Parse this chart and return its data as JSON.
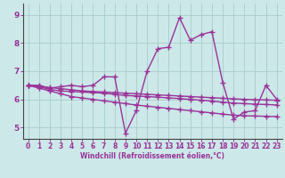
{
  "title": "",
  "xlabel": "Windchill (Refroidissement éolien,°C)",
  "ylabel": "",
  "xlim": [
    -0.5,
    23.5
  ],
  "ylim": [
    4.6,
    9.4
  ],
  "yticks": [
    5,
    6,
    7,
    8,
    9
  ],
  "xticks": [
    0,
    1,
    2,
    3,
    4,
    5,
    6,
    7,
    8,
    9,
    10,
    11,
    12,
    13,
    14,
    15,
    16,
    17,
    18,
    19,
    20,
    21,
    22,
    23
  ],
  "bg_color": "#cce8e8",
  "grid_color": "#aacccc",
  "line_color": "#993399",
  "axis_color": "#555555",
  "marker": "+",
  "markersize": 4,
  "linewidth": 1.0,
  "lines": [
    [
      6.5,
      6.5,
      6.4,
      6.45,
      6.5,
      6.45,
      6.5,
      6.8,
      6.8,
      4.8,
      5.6,
      7.0,
      7.8,
      7.85,
      8.9,
      8.1,
      8.3,
      8.4,
      6.6,
      5.3,
      5.55,
      5.6,
      6.5,
      6.0
    ],
    [
      6.5,
      6.45,
      6.35,
      6.3,
      6.28,
      6.26,
      6.24,
      6.22,
      6.18,
      6.14,
      6.12,
      6.1,
      6.08,
      6.05,
      6.03,
      6.0,
      5.97,
      5.94,
      5.9,
      5.87,
      5.85,
      5.83,
      5.82,
      5.8
    ],
    [
      6.5,
      6.4,
      6.3,
      6.2,
      6.1,
      6.05,
      6.0,
      5.95,
      5.9,
      5.85,
      5.8,
      5.76,
      5.72,
      5.68,
      5.64,
      5.6,
      5.56,
      5.52,
      5.48,
      5.44,
      5.42,
      5.41,
      5.4,
      5.39
    ],
    [
      6.5,
      6.46,
      6.42,
      6.38,
      6.34,
      6.3,
      6.28,
      6.26,
      6.24,
      6.22,
      6.2,
      6.18,
      6.16,
      6.14,
      6.12,
      6.1,
      6.08,
      6.06,
      6.04,
      6.02,
      6.0,
      5.99,
      5.98,
      5.97
    ]
  ]
}
